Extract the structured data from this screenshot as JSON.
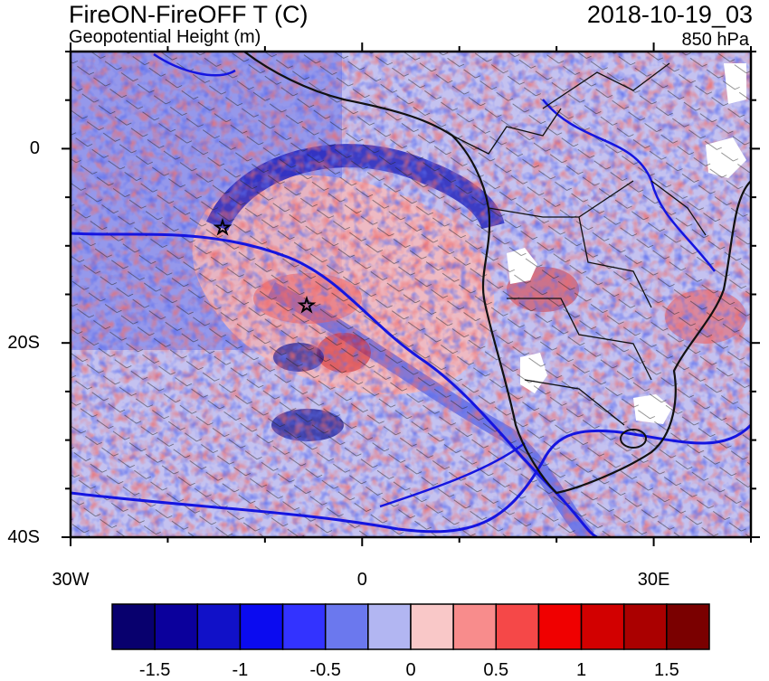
{
  "title": {
    "left": "FireON-FireOFF T (C)",
    "right": "2018-10-19_03"
  },
  "subtitle": {
    "left": "Geopotential Height (m)",
    "right": "850 hPa"
  },
  "axes": {
    "y_ticks": [
      {
        "label": "0",
        "lat": 0
      },
      {
        "label": "20S",
        "lat": -20
      },
      {
        "label": "40S",
        "lat": -40
      }
    ],
    "x_ticks": [
      {
        "label": "30W",
        "lon": -30
      },
      {
        "label": "0",
        "lon": 0
      },
      {
        "label": "30E",
        "lon": 30
      }
    ],
    "lon_range": [
      -30,
      40
    ],
    "lat_range": [
      -40,
      10
    ]
  },
  "colorbar": {
    "colors": [
      "#08006e",
      "#0b009c",
      "#1111c8",
      "#0b0bf0",
      "#3333ff",
      "#6b78ee",
      "#b2b6f2",
      "#f9c8c8",
      "#f88c8c",
      "#f54848",
      "#f00000",
      "#d20000",
      "#aa0000",
      "#7a0000"
    ],
    "labels": [
      {
        "text": "-1.5",
        "boundary": 1
      },
      {
        "text": "-1",
        "boundary": 3
      },
      {
        "text": "-0.5",
        "boundary": 5
      },
      {
        "text": "0",
        "boundary": 7
      },
      {
        "text": "0.5",
        "boundary": 9
      },
      {
        "text": "1",
        "boundary": 11
      },
      {
        "text": "1.5",
        "boundary": 13
      }
    ]
  }
}
